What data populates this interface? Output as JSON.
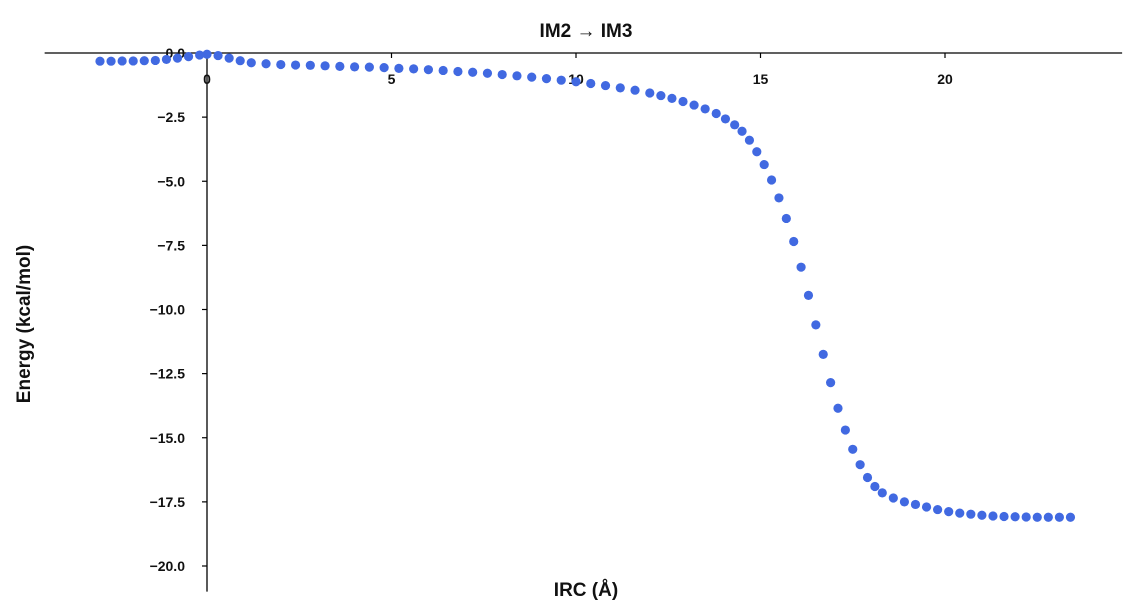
{
  "chart_data": {
    "type": "scatter",
    "title": "IM2 → IM3",
    "xlabel": "IRC (Å)",
    "ylabel": "Energy (kcal/mol)",
    "xlim": [
      -4.4,
      24.8
    ],
    "ylim": [
      -21.0,
      0.0
    ],
    "x_ticks": [
      0,
      5,
      10,
      15,
      20
    ],
    "x_tick_labels": [
      "0",
      "5",
      "10",
      "15",
      "20"
    ],
    "y_ticks": [
      0.0,
      -2.5,
      -5.0,
      -7.5,
      -10.0,
      -12.5,
      -15.0,
      -17.5,
      -20.0
    ],
    "y_tick_labels": [
      "0.0",
      "−2.5",
      "−5.0",
      "−7.5",
      "−10.0",
      "−12.5",
      "−15.0",
      "−17.5",
      "−20.0"
    ],
    "grid": false,
    "marker_color": "#4169E1",
    "series": [
      {
        "points": [
          [
            -2.9,
            -0.32
          ],
          [
            -2.6,
            -0.32
          ],
          [
            -2.3,
            -0.31
          ],
          [
            -2.0,
            -0.31
          ],
          [
            -1.7,
            -0.3
          ],
          [
            -1.4,
            -0.29
          ],
          [
            -1.1,
            -0.25
          ],
          [
            -0.8,
            -0.2
          ],
          [
            -0.5,
            -0.14
          ],
          [
            -0.2,
            -0.08
          ],
          [
            0.0,
            -0.05
          ],
          [
            0.3,
            -0.1
          ],
          [
            0.6,
            -0.2
          ],
          [
            0.9,
            -0.3
          ],
          [
            1.2,
            -0.38
          ],
          [
            1.6,
            -0.42
          ],
          [
            2.0,
            -0.45
          ],
          [
            2.4,
            -0.47
          ],
          [
            2.8,
            -0.48
          ],
          [
            3.2,
            -0.5
          ],
          [
            3.6,
            -0.52
          ],
          [
            4.0,
            -0.54
          ],
          [
            4.4,
            -0.55
          ],
          [
            4.8,
            -0.57
          ],
          [
            5.2,
            -0.6
          ],
          [
            5.6,
            -0.62
          ],
          [
            6.0,
            -0.65
          ],
          [
            6.4,
            -0.68
          ],
          [
            6.8,
            -0.72
          ],
          [
            7.2,
            -0.75
          ],
          [
            7.6,
            -0.79
          ],
          [
            8.0,
            -0.84
          ],
          [
            8.4,
            -0.89
          ],
          [
            8.8,
            -0.94
          ],
          [
            9.2,
            -1.0
          ],
          [
            9.6,
            -1.06
          ],
          [
            10.0,
            -1.12
          ],
          [
            10.4,
            -1.19
          ],
          [
            10.8,
            -1.27
          ],
          [
            11.2,
            -1.36
          ],
          [
            11.6,
            -1.45
          ],
          [
            12.0,
            -1.56
          ],
          [
            12.3,
            -1.66
          ],
          [
            12.6,
            -1.77
          ],
          [
            12.9,
            -1.89
          ],
          [
            13.2,
            -2.03
          ],
          [
            13.5,
            -2.18
          ],
          [
            13.8,
            -2.36
          ],
          [
            14.05,
            -2.57
          ],
          [
            14.3,
            -2.8
          ],
          [
            14.5,
            -3.05
          ],
          [
            14.7,
            -3.4
          ],
          [
            14.9,
            -3.85
          ],
          [
            15.1,
            -4.35
          ],
          [
            15.3,
            -4.95
          ],
          [
            15.5,
            -5.65
          ],
          [
            15.7,
            -6.45
          ],
          [
            15.9,
            -7.35
          ],
          [
            16.1,
            -8.35
          ],
          [
            16.3,
            -9.45
          ],
          [
            16.5,
            -10.6
          ],
          [
            16.7,
            -11.75
          ],
          [
            16.9,
            -12.85
          ],
          [
            17.1,
            -13.85
          ],
          [
            17.3,
            -14.7
          ],
          [
            17.5,
            -15.45
          ],
          [
            17.7,
            -16.05
          ],
          [
            17.9,
            -16.55
          ],
          [
            18.1,
            -16.9
          ],
          [
            18.3,
            -17.15
          ],
          [
            18.6,
            -17.35
          ],
          [
            18.9,
            -17.5
          ],
          [
            19.2,
            -17.6
          ],
          [
            19.5,
            -17.7
          ],
          [
            19.8,
            -17.8
          ],
          [
            20.1,
            -17.88
          ],
          [
            20.4,
            -17.94
          ],
          [
            20.7,
            -17.98
          ],
          [
            21.0,
            -18.02
          ],
          [
            21.3,
            -18.05
          ],
          [
            21.6,
            -18.07
          ],
          [
            21.9,
            -18.08
          ],
          [
            22.2,
            -18.09
          ],
          [
            22.5,
            -18.1
          ],
          [
            22.8,
            -18.1
          ],
          [
            23.1,
            -18.1
          ],
          [
            23.4,
            -18.1
          ]
        ]
      }
    ]
  }
}
